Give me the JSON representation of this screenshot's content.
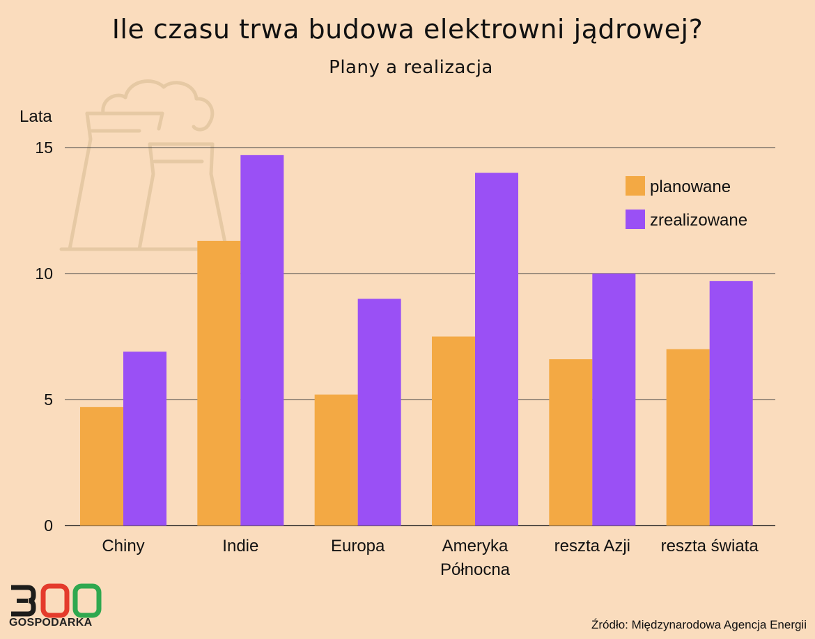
{
  "header": {
    "title": "Ile czasu trwa budowa elektrowni jądrowej?",
    "subtitle": "Plany a realizacja"
  },
  "source": "Źródło: Międzynarodowa Agencja Energii",
  "logo": {
    "number": "300",
    "word": "GOSPODARKA"
  },
  "colors": {
    "background": "#fadcbd",
    "planowane": "#f3a944",
    "zrealizowane": "#9a50f5",
    "grid": "#444444",
    "decoration": "#e6c9a4"
  },
  "chart_data": {
    "type": "bar",
    "title": "Ile czasu trwa budowa elektrowni jądrowej?",
    "subtitle": "Plany a realizacja",
    "ylabel": "Lata",
    "xlabel": "",
    "ylim": [
      0,
      15
    ],
    "yticks": [
      0,
      5,
      10,
      15
    ],
    "grid": true,
    "legend_position": "top-right",
    "categories": [
      "Chiny",
      "Indie",
      "Europa",
      "Ameryka\nPółnocna",
      "reszta Azji",
      "reszta świata"
    ],
    "series": [
      {
        "name": "planowane",
        "values": [
          4.7,
          11.3,
          5.2,
          7.5,
          6.6,
          7.0
        ]
      },
      {
        "name": "zrealizowane",
        "values": [
          6.9,
          14.7,
          9.0,
          14.0,
          10.0,
          9.7
        ]
      }
    ]
  }
}
